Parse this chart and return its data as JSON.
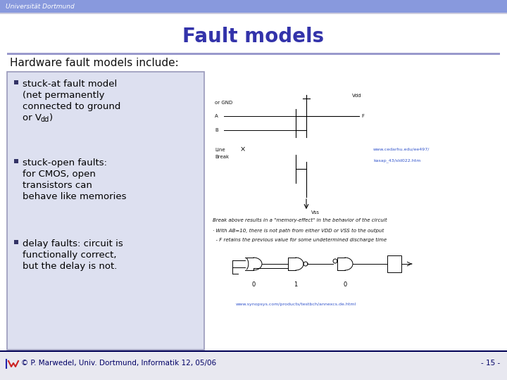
{
  "title": "Fault models",
  "title_color": "#3333aa",
  "header_bar_color": "#8899dd",
  "header_text": "Universität Dortmund",
  "header_text_color": "#ffffff",
  "slide_bg": "#ffffff",
  "horizontal_rule_color": "#9999cc",
  "section_header": "Hardware fault models include:",
  "section_header_color": "#111111",
  "bullet_box_bg": "#dde0f0",
  "bullet_box_border": "#9999bb",
  "bullet_color": "#000000",
  "bullet_square_color": "#333366",
  "footer_line_color": "#000055",
  "footer_text": "© P. Marwedel, Univ. Dortmund, Informatik 12, 05/06",
  "footer_page": "- 15 -",
  "footer_color": "#000066",
  "footer_bg": "#e8e8f0",
  "url1": "www.cedarhu.edu/ee497/",
  "url2": "kasap_43/sld022.htm",
  "url3": "www.synopsys.com/products/testbch/annexcs.de.html",
  "circuit_text1": "Break above results in a \"memory-effect\" in the behavior of the circuit",
  "circuit_text2": "· With AB=10, there is not path from either VDD or VSS to the output",
  "circuit_text3": "  - F retains the previous value for some undetermined discharge time"
}
